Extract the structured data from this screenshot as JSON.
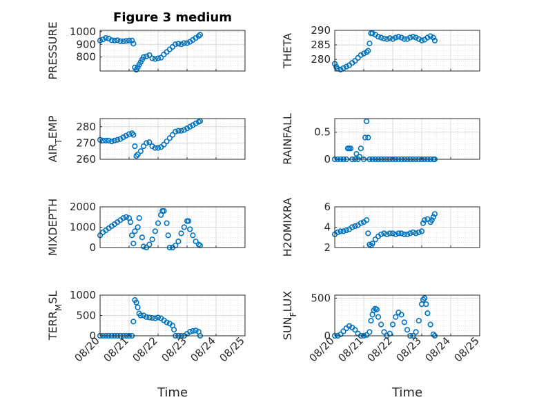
{
  "figure": {
    "title": "Figure 3 medium",
    "marker_color": "#0072bd",
    "grid_color": "#d9d9d9",
    "axis_color": "#262626"
  },
  "chart_data": [
    {
      "type": "scatter",
      "panel": "top-left",
      "ylabel": "PRESSURE",
      "title": "Figure 3 medium",
      "xlabel": "",
      "xlim": [
        0,
        5
      ],
      "ylim": [
        690,
        1010
      ],
      "yticks": [
        800,
        900,
        1000
      ],
      "xticklabels": [],
      "grid": "on",
      "points": [
        [
          0,
          930
        ],
        [
          0.1,
          938
        ],
        [
          0.2,
          950
        ],
        [
          0.3,
          945
        ],
        [
          0.4,
          932
        ],
        [
          0.5,
          930
        ],
        [
          0.6,
          932
        ],
        [
          0.7,
          925
        ],
        [
          0.8,
          924
        ],
        [
          0.9,
          927
        ],
        [
          1,
          930
        ],
        [
          1.1,
          930
        ],
        [
          1.15,
          905
        ],
        [
          1.2,
          718
        ],
        [
          1.25,
          700
        ],
        [
          1.3,
          720
        ],
        [
          1.35,
          740
        ],
        [
          1.4,
          760
        ],
        [
          1.45,
          780
        ],
        [
          1.5,
          800
        ],
        [
          1.6,
          805
        ],
        [
          1.7,
          815
        ],
        [
          1.8,
          790
        ],
        [
          1.9,
          785
        ],
        [
          2,
          790
        ],
        [
          2.1,
          795
        ],
        [
          2.2,
          820
        ],
        [
          2.3,
          840
        ],
        [
          2.4,
          860
        ],
        [
          2.5,
          880
        ],
        [
          2.6,
          900
        ],
        [
          2.7,
          905
        ],
        [
          2.8,
          900
        ],
        [
          2.9,
          910
        ],
        [
          3,
          910
        ],
        [
          3.1,
          920
        ],
        [
          3.2,
          935
        ],
        [
          3.3,
          950
        ],
        [
          3.4,
          965
        ],
        [
          3.45,
          975
        ]
      ]
    },
    {
      "type": "scatter",
      "panel": "top-right",
      "ylabel": "THETA",
      "xlabel": "",
      "xlim": [
        0,
        5
      ],
      "ylim": [
        276,
        290
      ],
      "yticks": [
        280,
        285,
        290
      ],
      "xticklabels": [],
      "grid": "on",
      "points": [
        [
          0,
          278.5
        ],
        [
          0.05,
          277.5
        ],
        [
          0.1,
          276.8
        ],
        [
          0.2,
          276.5
        ],
        [
          0.3,
          277
        ],
        [
          0.4,
          277.5
        ],
        [
          0.5,
          278
        ],
        [
          0.6,
          278.8
        ],
        [
          0.7,
          279.5
        ],
        [
          0.8,
          280.5
        ],
        [
          0.9,
          281.5
        ],
        [
          1,
          282
        ],
        [
          1.1,
          282.5
        ],
        [
          1.15,
          283
        ],
        [
          1.2,
          285.5
        ],
        [
          1.25,
          289
        ],
        [
          1.3,
          289
        ],
        [
          1.4,
          288.5
        ],
        [
          1.5,
          287.8
        ],
        [
          1.6,
          287.5
        ],
        [
          1.7,
          287.2
        ],
        [
          1.8,
          287
        ],
        [
          1.9,
          287.3
        ],
        [
          2,
          287
        ],
        [
          2.1,
          287.5
        ],
        [
          2.2,
          287.8
        ],
        [
          2.3,
          287.5
        ],
        [
          2.4,
          287
        ],
        [
          2.5,
          287
        ],
        [
          2.6,
          287.5
        ],
        [
          2.7,
          287.8
        ],
        [
          2.8,
          287.5
        ],
        [
          2.9,
          287
        ],
        [
          3,
          286.5
        ],
        [
          3.1,
          286.8
        ],
        [
          3.2,
          287.5
        ],
        [
          3.3,
          288
        ],
        [
          3.4,
          287.5
        ],
        [
          3.45,
          286.5
        ]
      ]
    },
    {
      "type": "scatter",
      "panel": "second-left",
      "ylabel": "AIR_TEMP",
      "xlabel": "",
      "xlim": [
        0,
        5
      ],
      "ylim": [
        260,
        285
      ],
      "yticks": [
        260,
        270,
        280
      ],
      "xticklabels": [],
      "grid": "on",
      "points": [
        [
          0,
          272
        ],
        [
          0.1,
          271.5
        ],
        [
          0.2,
          271.5
        ],
        [
          0.3,
          271.5
        ],
        [
          0.4,
          271
        ],
        [
          0.5,
          271.5
        ],
        [
          0.6,
          272
        ],
        [
          0.7,
          272.5
        ],
        [
          0.8,
          273.5
        ],
        [
          0.9,
          274.5
        ],
        [
          1,
          275.5
        ],
        [
          1.1,
          276
        ],
        [
          1.15,
          275
        ],
        [
          1.2,
          268
        ],
        [
          1.25,
          262
        ],
        [
          1.3,
          263
        ],
        [
          1.4,
          265
        ],
        [
          1.5,
          268
        ],
        [
          1.6,
          270
        ],
        [
          1.7,
          270.5
        ],
        [
          1.8,
          268
        ],
        [
          1.9,
          267
        ],
        [
          2,
          267
        ],
        [
          2.1,
          267.5
        ],
        [
          2.2,
          269
        ],
        [
          2.3,
          271
        ],
        [
          2.4,
          273
        ],
        [
          2.5,
          275
        ],
        [
          2.6,
          277
        ],
        [
          2.7,
          277.5
        ],
        [
          2.8,
          277.5
        ],
        [
          2.9,
          278
        ],
        [
          3,
          279
        ],
        [
          3.1,
          280
        ],
        [
          3.2,
          281
        ],
        [
          3.3,
          282
        ],
        [
          3.4,
          283
        ],
        [
          3.45,
          283.5
        ]
      ]
    },
    {
      "type": "scatter",
      "panel": "second-right",
      "ylabel": "RAINFALL",
      "xlabel": "",
      "xlim": [
        0,
        5
      ],
      "ylim": [
        0,
        0.75
      ],
      "yticks": [
        0,
        0.5
      ],
      "xticklabels": [],
      "grid": "on",
      "points": [
        [
          0,
          0
        ],
        [
          0.1,
          0
        ],
        [
          0.2,
          0
        ],
        [
          0.3,
          0
        ],
        [
          0.4,
          0
        ],
        [
          0.45,
          0.2
        ],
        [
          0.5,
          0.2
        ],
        [
          0.55,
          0.2
        ],
        [
          0.6,
          0
        ],
        [
          0.7,
          0
        ],
        [
          0.75,
          0.1
        ],
        [
          0.8,
          0
        ],
        [
          0.85,
          0.05
        ],
        [
          0.9,
          0.2
        ],
        [
          1,
          0
        ],
        [
          1.05,
          0.4
        ],
        [
          1.1,
          0.7
        ],
        [
          1.15,
          0.4
        ],
        [
          1.2,
          0
        ],
        [
          1.3,
          0
        ],
        [
          1.4,
          0
        ],
        [
          1.5,
          0
        ],
        [
          1.6,
          0
        ],
        [
          1.7,
          0
        ],
        [
          1.8,
          0
        ],
        [
          1.9,
          0
        ],
        [
          2,
          0
        ],
        [
          2.1,
          0
        ],
        [
          2.2,
          0
        ],
        [
          2.3,
          0
        ],
        [
          2.4,
          0
        ],
        [
          2.5,
          0
        ],
        [
          2.6,
          0
        ],
        [
          2.7,
          0
        ],
        [
          2.8,
          0
        ],
        [
          2.9,
          0
        ],
        [
          3,
          0
        ],
        [
          3.1,
          0
        ],
        [
          3.2,
          0
        ],
        [
          3.3,
          0
        ],
        [
          3.4,
          0
        ],
        [
          3.45,
          0
        ]
      ]
    },
    {
      "type": "scatter",
      "panel": "third-left",
      "ylabel": "MIXDEPTH",
      "xlabel": "",
      "xlim": [
        0,
        5
      ],
      "ylim": [
        0,
        2000
      ],
      "yticks": [
        0,
        1000,
        2000
      ],
      "xticklabels": [],
      "grid": "on",
      "points": [
        [
          0,
          600
        ],
        [
          0.1,
          750
        ],
        [
          0.2,
          850
        ],
        [
          0.3,
          950
        ],
        [
          0.4,
          1050
        ],
        [
          0.5,
          1150
        ],
        [
          0.6,
          1250
        ],
        [
          0.7,
          1350
        ],
        [
          0.8,
          1450
        ],
        [
          0.9,
          1500
        ],
        [
          1,
          1450
        ],
        [
          1.05,
          1250
        ],
        [
          1.1,
          600
        ],
        [
          1.15,
          200
        ],
        [
          1.2,
          800
        ],
        [
          1.3,
          1000
        ],
        [
          1.35,
          1450
        ],
        [
          1.45,
          500
        ],
        [
          1.5,
          50
        ],
        [
          1.6,
          0
        ],
        [
          1.7,
          150
        ],
        [
          1.8,
          400
        ],
        [
          1.9,
          800
        ],
        [
          2,
          1200
        ],
        [
          2.1,
          1600
        ],
        [
          2.15,
          1800
        ],
        [
          2.2,
          1800
        ],
        [
          2.3,
          1200
        ],
        [
          2.35,
          600
        ],
        [
          2.4,
          0
        ],
        [
          2.5,
          0
        ],
        [
          2.6,
          100
        ],
        [
          2.7,
          300
        ],
        [
          2.8,
          700
        ],
        [
          2.9,
          1000
        ],
        [
          3,
          1300
        ],
        [
          3.05,
          1300
        ],
        [
          3.1,
          900
        ],
        [
          3.2,
          600
        ],
        [
          3.3,
          300
        ],
        [
          3.4,
          150
        ],
        [
          3.45,
          100
        ]
      ]
    },
    {
      "type": "scatter",
      "panel": "third-right",
      "ylabel": "H2OMIXRA",
      "xlabel": "",
      "xlim": [
        0,
        5
      ],
      "ylim": [
        2,
        6
      ],
      "yticks": [
        2,
        4,
        6
      ],
      "xticklabels": [],
      "grid": "on",
      "points": [
        [
          0,
          3.3
        ],
        [
          0.1,
          3.5
        ],
        [
          0.2,
          3.6
        ],
        [
          0.3,
          3.6
        ],
        [
          0.4,
          3.7
        ],
        [
          0.5,
          3.8
        ],
        [
          0.6,
          4
        ],
        [
          0.7,
          4.1
        ],
        [
          0.8,
          4.2
        ],
        [
          0.9,
          4.4
        ],
        [
          1,
          4.5
        ],
        [
          1.1,
          4.7
        ],
        [
          1.15,
          3.4
        ],
        [
          1.2,
          2.3
        ],
        [
          1.25,
          2.2
        ],
        [
          1.3,
          2.4
        ],
        [
          1.4,
          2.8
        ],
        [
          1.5,
          3.1
        ],
        [
          1.6,
          3.3
        ],
        [
          1.7,
          3.4
        ],
        [
          1.8,
          3.3
        ],
        [
          1.9,
          3.4
        ],
        [
          2,
          3.4
        ],
        [
          2.1,
          3.3
        ],
        [
          2.2,
          3.4
        ],
        [
          2.3,
          3.4
        ],
        [
          2.4,
          3.3
        ],
        [
          2.5,
          3.3
        ],
        [
          2.6,
          3.4
        ],
        [
          2.7,
          3.5
        ],
        [
          2.8,
          3.4
        ],
        [
          2.9,
          3.5
        ],
        [
          3,
          3.6
        ],
        [
          3.05,
          4.4
        ],
        [
          3.1,
          4.7
        ],
        [
          3.2,
          4.8
        ],
        [
          3.3,
          4.5
        ],
        [
          3.35,
          4.7
        ],
        [
          3.4,
          5
        ],
        [
          3.45,
          5.3
        ]
      ]
    },
    {
      "type": "scatter",
      "panel": "bottom-left",
      "ylabel": "TERR_MSL",
      "xlabel": "Time",
      "xlim": [
        0,
        5
      ],
      "ylim": [
        0,
        1000
      ],
      "yticks": [
        0,
        500,
        1000
      ],
      "xticklabels": [
        "08/20",
        "08/21",
        "08/22",
        "08/23",
        "08/24",
        "08/25"
      ],
      "grid": "on",
      "points": [
        [
          0,
          0
        ],
        [
          0.1,
          0
        ],
        [
          0.2,
          0
        ],
        [
          0.3,
          0
        ],
        [
          0.4,
          0
        ],
        [
          0.5,
          0
        ],
        [
          0.6,
          0
        ],
        [
          0.7,
          0
        ],
        [
          0.8,
          0
        ],
        [
          0.9,
          0
        ],
        [
          1,
          0
        ],
        [
          1.1,
          0
        ],
        [
          1.15,
          350
        ],
        [
          1.2,
          880
        ],
        [
          1.25,
          820
        ],
        [
          1.3,
          700
        ],
        [
          1.35,
          550
        ],
        [
          1.4,
          500
        ],
        [
          1.5,
          500
        ],
        [
          1.6,
          460
        ],
        [
          1.7,
          450
        ],
        [
          1.8,
          440
        ],
        [
          1.9,
          430
        ],
        [
          2,
          450
        ],
        [
          2.1,
          430
        ],
        [
          2.2,
          380
        ],
        [
          2.3,
          330
        ],
        [
          2.4,
          300
        ],
        [
          2.5,
          250
        ],
        [
          2.55,
          150
        ],
        [
          2.6,
          0
        ],
        [
          2.7,
          0
        ],
        [
          2.8,
          0
        ],
        [
          2.9,
          0
        ],
        [
          3,
          50
        ],
        [
          3.1,
          100
        ],
        [
          3.2,
          120
        ],
        [
          3.3,
          130
        ],
        [
          3.4,
          100
        ],
        [
          3.45,
          0
        ]
      ]
    },
    {
      "type": "scatter",
      "panel": "bottom-right",
      "ylabel": "SUN_FLUX",
      "xlabel": "Time",
      "xlim": [
        0,
        5
      ],
      "ylim": [
        0,
        540
      ],
      "yticks": [
        0,
        500
      ],
      "xticklabels": [
        "08/20",
        "08/21",
        "08/22",
        "08/23",
        "08/24",
        "08/25"
      ],
      "grid": "on",
      "points": [
        [
          0,
          0
        ],
        [
          0.1,
          0
        ],
        [
          0.2,
          20
        ],
        [
          0.3,
          60
        ],
        [
          0.4,
          100
        ],
        [
          0.5,
          130
        ],
        [
          0.6,
          110
        ],
        [
          0.7,
          80
        ],
        [
          0.8,
          30
        ],
        [
          0.9,
          0
        ],
        [
          1,
          0
        ],
        [
          1.1,
          10
        ],
        [
          1.2,
          50
        ],
        [
          1.25,
          200
        ],
        [
          1.3,
          280
        ],
        [
          1.35,
          340
        ],
        [
          1.4,
          360
        ],
        [
          1.45,
          350
        ],
        [
          1.5,
          250
        ],
        [
          1.6,
          150
        ],
        [
          1.7,
          50
        ],
        [
          1.8,
          0
        ],
        [
          1.9,
          30
        ],
        [
          2,
          150
        ],
        [
          2.1,
          250
        ],
        [
          2.2,
          310
        ],
        [
          2.3,
          280
        ],
        [
          2.4,
          180
        ],
        [
          2.5,
          80
        ],
        [
          2.6,
          0
        ],
        [
          2.7,
          0
        ],
        [
          2.8,
          50
        ],
        [
          2.9,
          200
        ],
        [
          3,
          420
        ],
        [
          3.05,
          480
        ],
        [
          3.1,
          500
        ],
        [
          3.15,
          420
        ],
        [
          3.2,
          300
        ],
        [
          3.3,
          150
        ],
        [
          3.4,
          20
        ],
        [
          3.45,
          0
        ]
      ]
    }
  ]
}
